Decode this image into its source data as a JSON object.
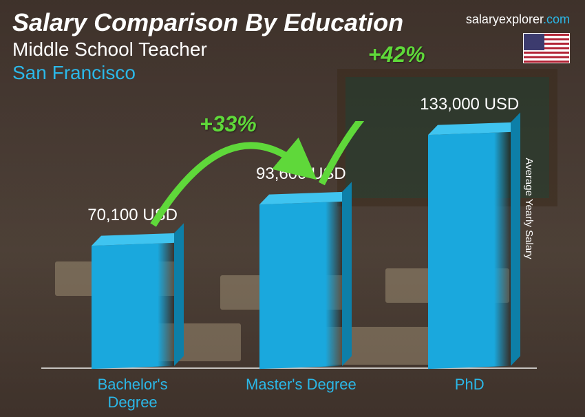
{
  "header": {
    "title": "Salary Comparison By Education",
    "subtitle": "Middle School Teacher",
    "location": "San Francisco"
  },
  "watermark": {
    "base": "salaryexplorer",
    "suffix": ".com"
  },
  "flag": {
    "country": "United States"
  },
  "yaxis_label": "Average Yearly Salary",
  "chart": {
    "type": "bar",
    "bar_color": "#1aa8dd",
    "bar_top_color": "#3fc4f0",
    "bar_side_color": "#0d7fa8",
    "label_color": "#2bb8e8",
    "value_color": "#ffffff",
    "arrow_color": "#5fd83a",
    "title_fontsize": 36,
    "value_fontsize": 24,
    "label_fontsize": 22,
    "pct_fontsize": 32,
    "max_value": 133000,
    "bars": [
      {
        "label": "Bachelor's Degree",
        "value": 70100,
        "value_text": "70,100 USD",
        "x_pct": 8
      },
      {
        "label": "Master's Degree",
        "value": 93600,
        "value_text": "93,600 USD",
        "x_pct": 42
      },
      {
        "label": "PhD",
        "value": 133000,
        "value_text": "133,000 USD",
        "x_pct": 76
      }
    ],
    "increases": [
      {
        "from": 0,
        "to": 1,
        "pct_text": "+33%"
      },
      {
        "from": 1,
        "to": 2,
        "pct_text": "+42%"
      }
    ]
  },
  "colors": {
    "background_overlay": "rgba(40,30,30,0.55)",
    "text_white": "#ffffff",
    "accent": "#2bb8e8",
    "green": "#5fd83a"
  }
}
